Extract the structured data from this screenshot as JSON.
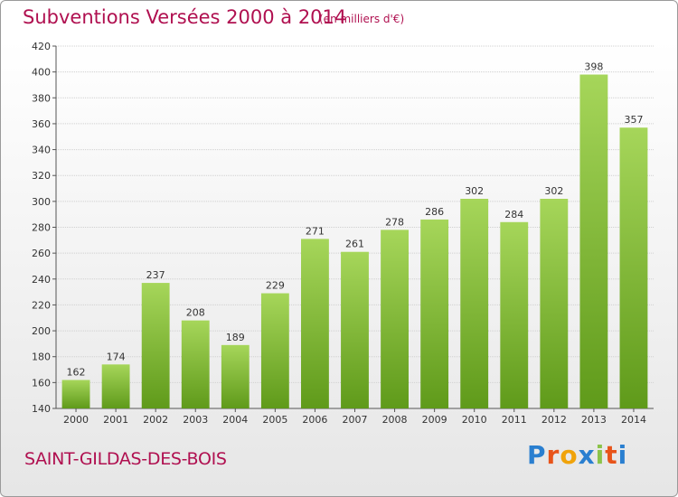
{
  "header": {
    "title": "Subventions Versées 2000 à 2014",
    "subtitle": "(en milliers d'€)"
  },
  "footer": {
    "commune": "SAINT-GILDAS-DES-BOIS",
    "logo_letters": [
      "P",
      "r",
      "o",
      "x",
      "i",
      "t",
      "i"
    ],
    "logo_colors": [
      "#2a7fd0",
      "#e8541a",
      "#f0a30a",
      "#2a7fd0",
      "#8bc34a",
      "#e8541a",
      "#2a7fd0"
    ]
  },
  "chart_data": {
    "type": "bar",
    "title": "Subventions Versées 2000 à 2014",
    "subtitle": "(en milliers d'€)",
    "categories": [
      "2000",
      "2001",
      "2002",
      "2003",
      "2004",
      "2005",
      "2006",
      "2007",
      "2008",
      "2009",
      "2010",
      "2011",
      "2012",
      "2013",
      "2014"
    ],
    "values": [
      162,
      174,
      237,
      208,
      189,
      229,
      271,
      261,
      278,
      286,
      302,
      284,
      302,
      398,
      357
    ],
    "ylim": [
      140,
      420
    ],
    "yticks": [
      140,
      160,
      180,
      200,
      220,
      240,
      260,
      280,
      300,
      320,
      340,
      360,
      380,
      400,
      420
    ],
    "grid": true,
    "bar_color_top": "#a6d65a",
    "bar_color_bottom": "#5f9a1a"
  }
}
